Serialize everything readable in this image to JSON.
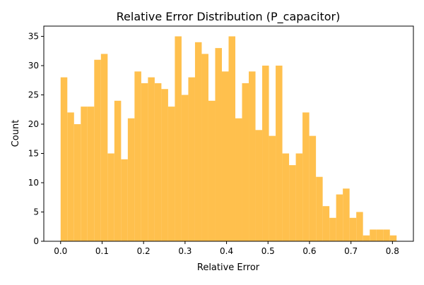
{
  "chart_data": {
    "type": "bar",
    "title": "Relative Error Distribution (P_capacitor)",
    "xlabel": "Relative Error",
    "ylabel": "Count",
    "xlim": [
      -0.0405,
      0.8505
    ],
    "ylim": [
      0,
      36.75
    ],
    "x_ticks": [
      0.0,
      0.1,
      0.2,
      0.3,
      0.4,
      0.5,
      0.6,
      0.7,
      0.8
    ],
    "x_tick_labels": [
      "0.0",
      "0.1",
      "0.2",
      "0.3",
      "0.4",
      "0.5",
      "0.6",
      "0.7",
      "0.8"
    ],
    "y_ticks": [
      0,
      5,
      10,
      15,
      20,
      25,
      30,
      35
    ],
    "y_tick_labels": [
      "0",
      "5",
      "10",
      "15",
      "20",
      "25",
      "30",
      "35"
    ],
    "grid": false,
    "bar_color": "#FFC04D",
    "bin_start": 0.0,
    "bin_width": 0.0162,
    "values": [
      28,
      22,
      20,
      23,
      23,
      31,
      32,
      15,
      24,
      14,
      21,
      29,
      27,
      28,
      27,
      26,
      23,
      35,
      25,
      28,
      34,
      32,
      24,
      33,
      29,
      35,
      21,
      27,
      29,
      19,
      30,
      18,
      30,
      15,
      13,
      15,
      22,
      18,
      11,
      6,
      4,
      8,
      9,
      4,
      5,
      1,
      2,
      2,
      2,
      1
    ]
  }
}
